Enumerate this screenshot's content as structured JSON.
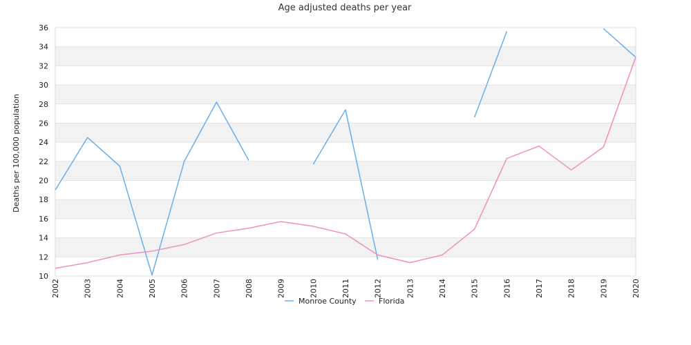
{
  "chart_data": {
    "type": "line",
    "title": "Age adjusted deaths per year",
    "xlabel": "",
    "ylabel": "Deaths per 100,000 population",
    "x": [
      "2002",
      "2003",
      "2004",
      "2005",
      "2006",
      "2007",
      "2008",
      "2009",
      "2010",
      "2011",
      "2012",
      "2013",
      "2014",
      "2015",
      "2016",
      "2017",
      "2018",
      "2019",
      "2020"
    ],
    "ylim": [
      10,
      36
    ],
    "yticks": [
      "10",
      "12",
      "14",
      "16",
      "18",
      "20",
      "22",
      "24",
      "26",
      "28",
      "30",
      "32",
      "34",
      "36"
    ],
    "grid": "horizontal alternating bands",
    "legend_position": "bottom",
    "series": [
      {
        "name": "Monroe County",
        "color": "#6aaee8",
        "values": [
          19.0,
          24.5,
          21.5,
          10.1,
          22.0,
          28.2,
          22.1,
          null,
          21.7,
          27.4,
          11.7,
          null,
          null,
          26.6,
          35.6,
          null,
          null,
          35.9,
          32.9
        ]
      },
      {
        "name": "Florida",
        "color": "#ef8fbd",
        "values": [
          10.8,
          11.4,
          12.2,
          12.6,
          13.3,
          14.5,
          15.0,
          15.7,
          15.2,
          14.4,
          12.2,
          11.4,
          12.2,
          14.9,
          22.3,
          23.6,
          21.1,
          23.5,
          32.9
        ]
      }
    ]
  }
}
